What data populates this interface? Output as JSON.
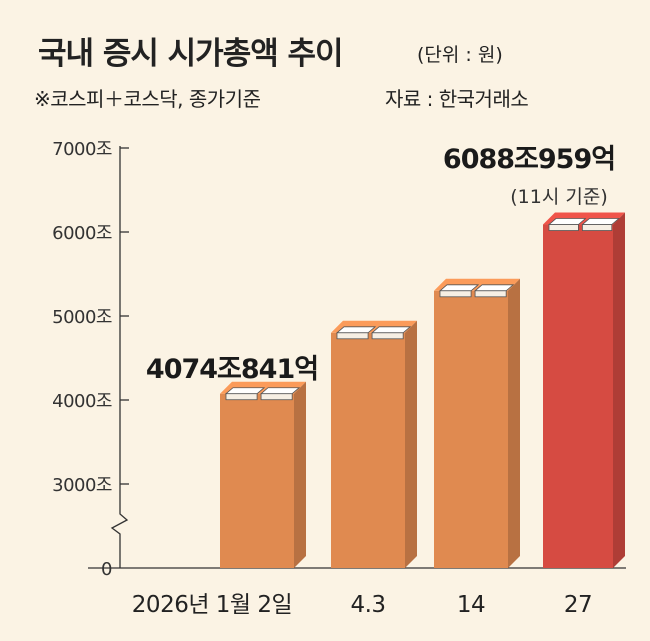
{
  "title": "국내 증시 시가총액 추이",
  "unit": "(단위 : 원)",
  "subtitle": "※코스피＋코스닥, 종가기준",
  "source": "자료 : 한국거래소",
  "colors": {
    "background": "#fbf3e4",
    "bar": "#e08a50",
    "bar_highlight": "#d64b42",
    "axis": "#333333"
  },
  "chart_data": {
    "type": "bar",
    "categories": [
      "2026년 1월 2일",
      "4.3",
      "14",
      "27"
    ],
    "values": [
      4074.841,
      4800,
      5300,
      6088.959
    ],
    "highlight_index": 3,
    "y_ticks": [
      {
        "value": 0,
        "label": "0"
      },
      {
        "value": 3000,
        "label": "3000조"
      },
      {
        "value": 4000,
        "label": "4000조"
      },
      {
        "value": 5000,
        "label": "5000조"
      },
      {
        "value": 6000,
        "label": "6000조"
      },
      {
        "value": 7000,
        "label": "7000조"
      }
    ],
    "axis_break": {
      "from": 0,
      "to": 3000
    },
    "grid": false,
    "annotations": [
      {
        "index": 0,
        "text": "4074조841억"
      },
      {
        "index": 3,
        "text": "6088조959억",
        "note": "(11시 기준)"
      }
    ]
  }
}
